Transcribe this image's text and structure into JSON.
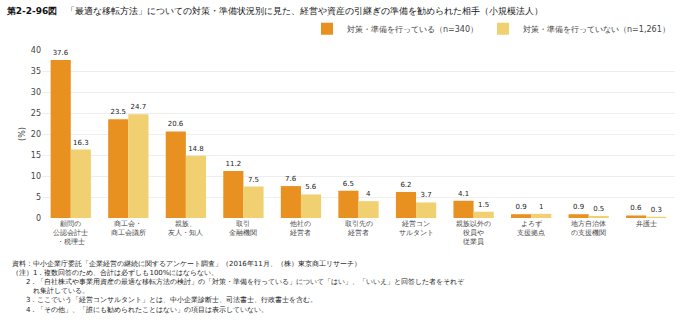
{
  "chart_data": {
    "type": "bar",
    "title": "第2-2-96図",
    "subtitle": "「最適な移転方法」についての対策・準備状況別に見た、経営や資産の引継ぎの準備を勧められた相手（小規模法人）",
    "categories": [
      "顧問の\n公認会計士\n・税理士",
      "商工会・\n商工会議所",
      "親族、\n友人・知人",
      "取引\n金融機関",
      "他社の\n経営者",
      "取引先の\n経営者",
      "経営コン\nサルタント",
      "親族以外の\n役員や\n従業員",
      "よろず\n支援拠点",
      "地方自治体\nの支援機関",
      "弁護士"
    ],
    "series": [
      {
        "name": "対策・準備を行っている（n=340）",
        "color": "#E89020",
        "values": [
          37.6,
          23.5,
          20.6,
          11.2,
          7.6,
          6.5,
          6.2,
          4.1,
          0.9,
          0.9,
          0.6
        ]
      },
      {
        "name": "対策・準備を行っていない（n=1,261）",
        "color": "#F0D070",
        "values": [
          16.3,
          24.7,
          14.8,
          7.5,
          5.6,
          4.0,
          3.7,
          1.5,
          1.0,
          0.5,
          0.3
        ]
      }
    ],
    "ylabel": "(%)",
    "ylim": [
      0,
      40
    ],
    "yticks": [
      0,
      5,
      10,
      15,
      20,
      25,
      30,
      35,
      40
    ],
    "grid": true,
    "legend": "upper right",
    "data_labels": true,
    "annotations": [
      "資料：中小企業庁委託「企業経営の継続に関するアンケート調査」（2016年11月、（株）東京商工リサーチ）",
      "（注）1．複数回答のため、合計は必ずしも100%にはならない。",
      "　　2．「自社株式や事業用資産の最適な移転方法の検討」の「対策・準備を行っている」について「はい」、「いいえ」と回答した者をそれぞ",
      "　　　れ集計している。",
      "　　3．ここでいう「経営コンサルタント」とは、中小企業診断士、司法書士、行政書士を含む。",
      "　　4．「その他」、「誰にも勧められたことはない」の項目は表示していない。"
    ]
  }
}
